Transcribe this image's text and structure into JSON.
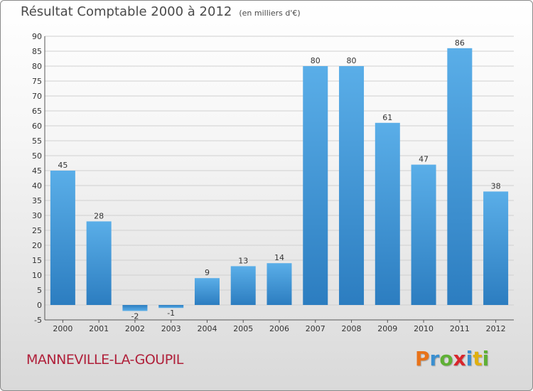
{
  "title": "Résultat Comptable 2000 à 2012",
  "subtitle": "(en milliers d'€)",
  "commune": "MANNEVILLE-LA-GOUPIL",
  "logo": {
    "letters": [
      "P",
      "r",
      "o",
      "x",
      "i",
      "t",
      "i"
    ],
    "colors": [
      "#e8731a",
      "#3a8fd0",
      "#5fb035",
      "#d8262c",
      "#3a8fd0",
      "#e0b010",
      "#5fb035"
    ]
  },
  "colors": {
    "bar_light": "#5aaee8",
    "bar_dark": "#2c7dc0",
    "grid": "#d0d0d0",
    "axis_text": "#333333"
  },
  "chart_data": {
    "type": "bar",
    "categories": [
      "2000",
      "2001",
      "2002",
      "2003",
      "2004",
      "2005",
      "2006",
      "2007",
      "2008",
      "2009",
      "2010",
      "2011",
      "2012"
    ],
    "values": [
      45,
      28,
      -2,
      -1,
      9,
      13,
      14,
      80,
      80,
      61,
      47,
      86,
      38
    ],
    "ylim": [
      -5,
      90
    ],
    "yticks": [
      -5,
      0,
      5,
      10,
      15,
      20,
      25,
      30,
      35,
      40,
      45,
      50,
      55,
      60,
      65,
      70,
      75,
      80,
      85,
      90
    ],
    "grid": true,
    "title": "Résultat Comptable 2000 à 2012",
    "ylabel": "",
    "xlabel": ""
  }
}
